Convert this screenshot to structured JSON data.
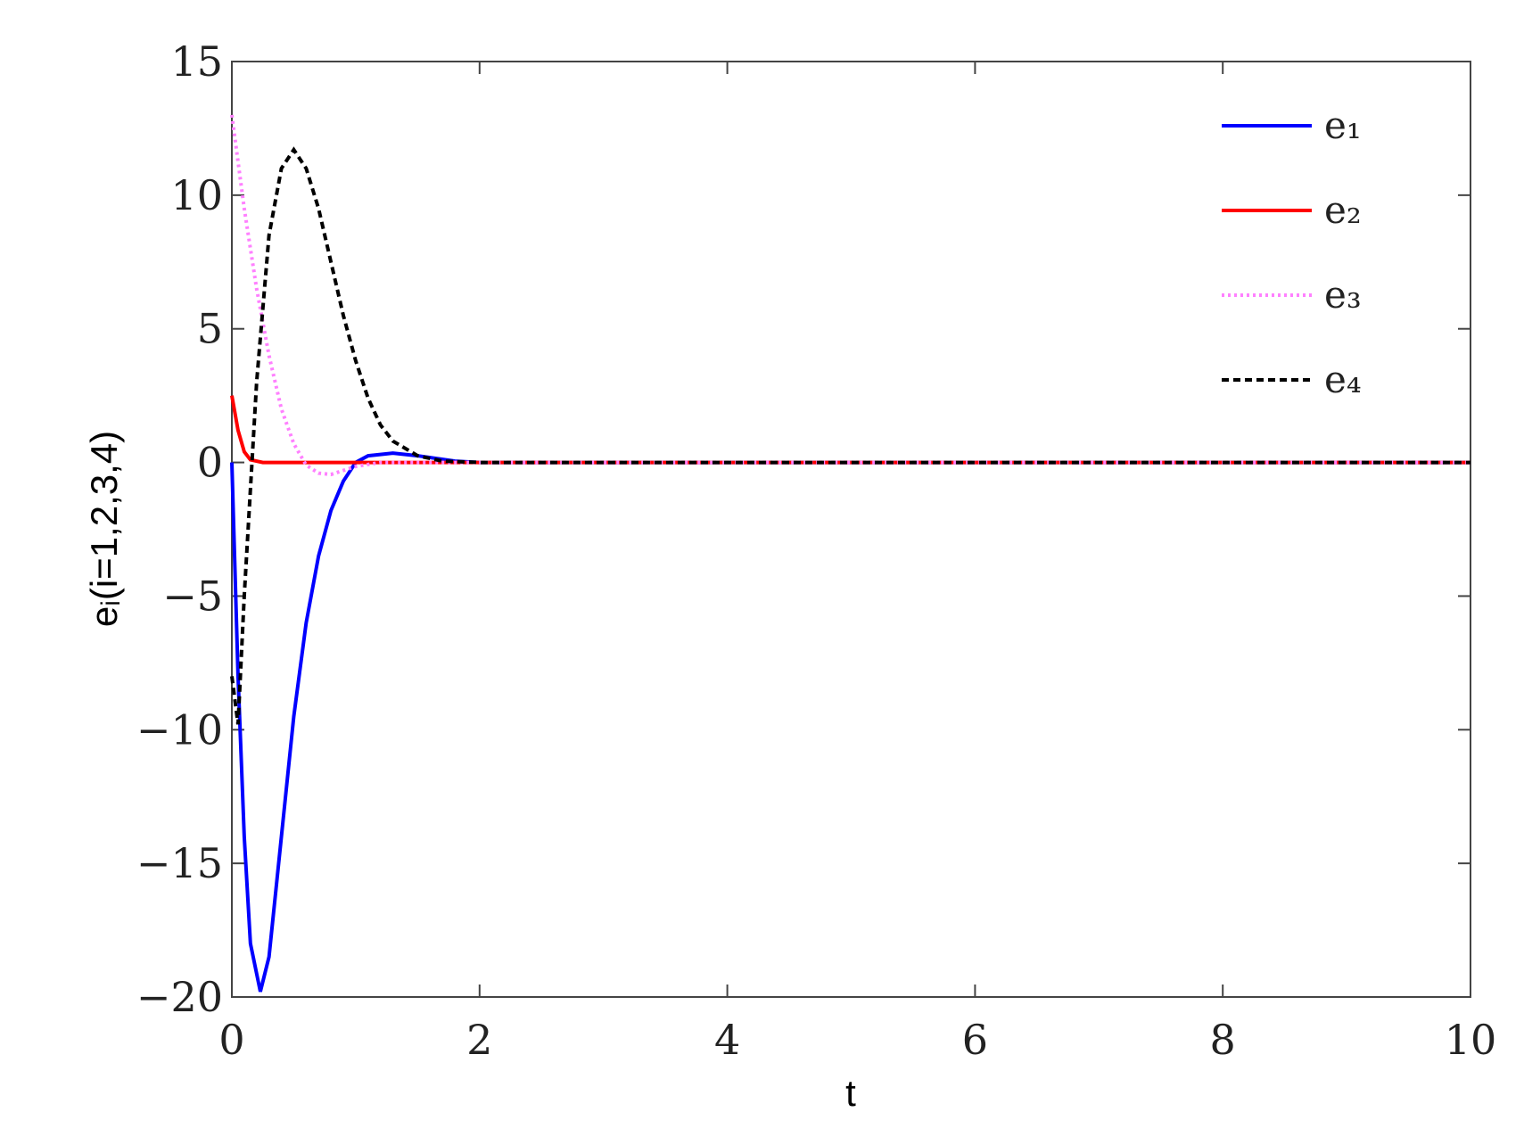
{
  "chart_data": {
    "type": "line",
    "xlabel": "t",
    "ylabel": "eᵢ(i=1,2,3,4)",
    "xlim": [
      0,
      10
    ],
    "ylim": [
      -20,
      15
    ],
    "xticks": [
      0,
      2,
      4,
      6,
      8,
      10
    ],
    "yticks": [
      {
        "value": -20,
        "label": "−20"
      },
      {
        "value": -15,
        "label": "−15"
      },
      {
        "value": -10,
        "label": "−10"
      },
      {
        "value": -5,
        "label": "−5"
      },
      0,
      5,
      10,
      15
    ],
    "grid": false,
    "legend": "upper right",
    "series": [
      {
        "name": "e₁",
        "color": "#0000ff",
        "linestyle": "solid",
        "x": [
          0,
          0.05,
          0.1,
          0.15,
          0.23,
          0.3,
          0.4,
          0.5,
          0.6,
          0.7,
          0.8,
          0.9,
          1.0,
          1.1,
          1.3,
          1.5,
          1.8,
          2,
          10
        ],
        "values": [
          0,
          -8,
          -14,
          -18,
          -19.8,
          -18.5,
          -14,
          -9.5,
          -6,
          -3.5,
          -1.8,
          -0.7,
          0,
          0.25,
          0.35,
          0.25,
          0.05,
          0,
          0
        ]
      },
      {
        "name": "e₂",
        "color": "#ff0000",
        "linestyle": "solid",
        "x": [
          0,
          0.05,
          0.1,
          0.15,
          0.25,
          10
        ],
        "values": [
          2.5,
          1.2,
          0.4,
          0.1,
          0,
          0
        ]
      },
      {
        "name": "e₃",
        "color": "#ff80ff",
        "linestyle": "dotted",
        "x": [
          0,
          0.1,
          0.2,
          0.3,
          0.4,
          0.5,
          0.6,
          0.7,
          0.8,
          0.9,
          1.0,
          1.2,
          10
        ],
        "values": [
          13,
          9.5,
          6.5,
          4,
          2,
          0.7,
          -0.1,
          -0.4,
          -0.45,
          -0.3,
          -0.15,
          0,
          0
        ]
      },
      {
        "name": "e₄",
        "color": "#000000",
        "linestyle": "dashed",
        "x": [
          0,
          0.05,
          0.1,
          0.2,
          0.3,
          0.4,
          0.5,
          0.6,
          0.7,
          0.8,
          0.9,
          1.0,
          1.1,
          1.2,
          1.3,
          1.5,
          1.7,
          2,
          10
        ],
        "values": [
          -8,
          -9.8,
          -5,
          3,
          8.5,
          11,
          11.7,
          11,
          9.5,
          7.5,
          5.5,
          3.8,
          2.4,
          1.4,
          0.8,
          0.25,
          0.05,
          0,
          0
        ]
      }
    ]
  }
}
